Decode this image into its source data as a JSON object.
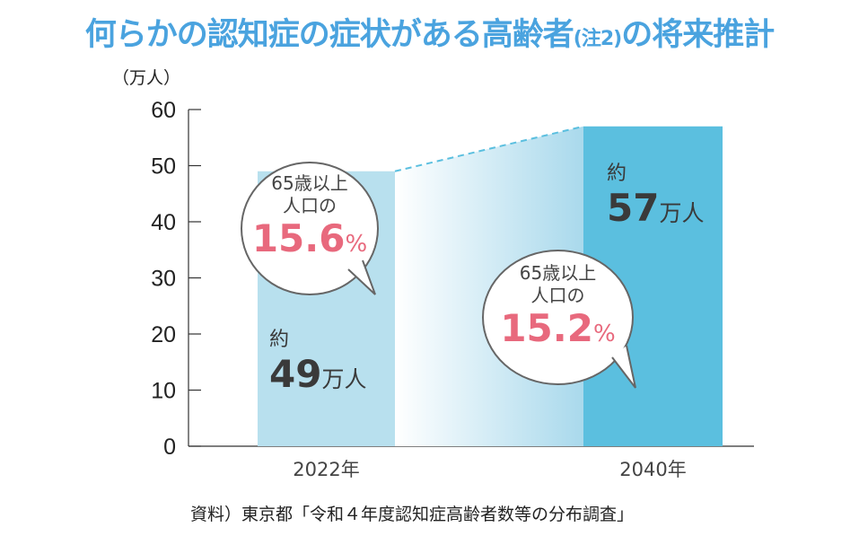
{
  "title": "何らかの認知症の症状がある高齢者",
  "title_note": "(注2)",
  "title_suffix": "の将来推計",
  "source": "資料）東京都「令和４年度認知症高齢者数等の分布調査」",
  "colors": {
    "title": "#4aa3df",
    "bar_2022": "#b8e0ee",
    "bar_2040": "#5bbfdf",
    "percent": "#e8697d",
    "dashed_line": "#5bbfdf"
  },
  "chart_data": {
    "type": "bar",
    "title": "何らかの認知症の症状がある高齢者(注2)の将来推計",
    "ylabel": "（万人）",
    "ylim": [
      0,
      60
    ],
    "yticks": [
      0,
      10,
      20,
      30,
      40,
      50,
      60
    ],
    "grid": false,
    "categories": [
      "2022年",
      "2040年"
    ],
    "values": [
      49,
      57
    ],
    "data_labels": [
      {
        "prefix": "約",
        "value": "49",
        "unit": "万人"
      },
      {
        "prefix": "約",
        "value": "57",
        "unit": "万人"
      }
    ],
    "annotations": [
      {
        "line1": "65歳以上",
        "line2": "人口の",
        "value": "15.6",
        "unit": "%"
      },
      {
        "line1": "65歳以上",
        "line2": "人口の",
        "value": "15.2",
        "unit": "%"
      }
    ]
  }
}
